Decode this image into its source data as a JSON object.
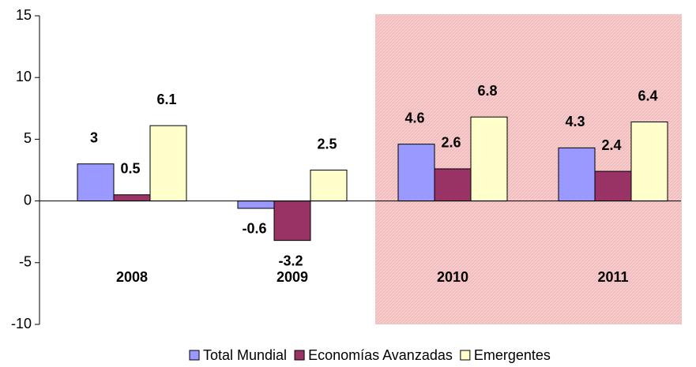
{
  "chart_data": {
    "type": "bar",
    "categories": [
      "2008",
      "2009",
      "2010",
      "2011"
    ],
    "series": [
      {
        "name": "Total Mundial",
        "color": "#9999ff",
        "values": [
          3,
          -0.6,
          4.6,
          4.3
        ]
      },
      {
        "name": "Economías Avanzadas",
        "color": "#993366",
        "values": [
          0.5,
          -3.2,
          2.6,
          2.4
        ]
      },
      {
        "name": "Emergentes",
        "color": "#ffffcc",
        "values": [
          6.1,
          2.5,
          6.8,
          6.4
        ]
      }
    ],
    "ylim": [
      -10,
      15
    ],
    "yticks": [
      -10,
      -5,
      0,
      5,
      10,
      15
    ],
    "grid": false,
    "legend": "bottom"
  }
}
